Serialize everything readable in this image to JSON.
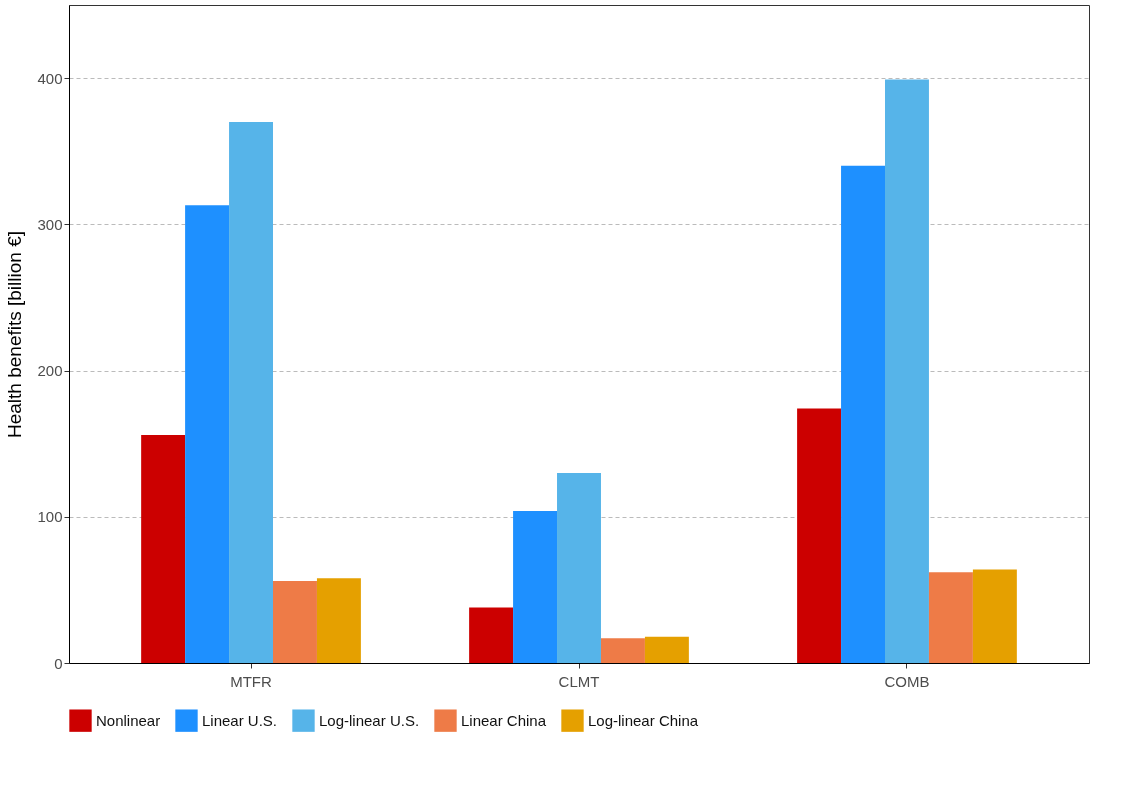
{
  "chart_data": {
    "type": "bar",
    "ylabel": "Health benefits [billion €]",
    "categories": [
      "MTFR",
      "CLMT",
      "COMB"
    ],
    "series": [
      {
        "name": "Nonlinear",
        "color": "#cc0000",
        "values": [
          156,
          38,
          174
        ]
      },
      {
        "name": "Linear U.S.",
        "color": "#1e90ff",
        "values": [
          313,
          104,
          340
        ]
      },
      {
        "name": "Log-linear U.S.",
        "color": "#56b4e9",
        "values": [
          370,
          130,
          399
        ]
      },
      {
        "name": "Linear China",
        "color": "#ee7b47",
        "values": [
          56,
          17,
          62
        ]
      },
      {
        "name": "Log-linear China",
        "color": "#e5a000",
        "values": [
          58,
          18,
          64
        ]
      }
    ],
    "ylim": [
      0,
      450
    ],
    "yticks": [
      0,
      100,
      200,
      300,
      400
    ],
    "grid": "y",
    "legend": "bottom"
  }
}
